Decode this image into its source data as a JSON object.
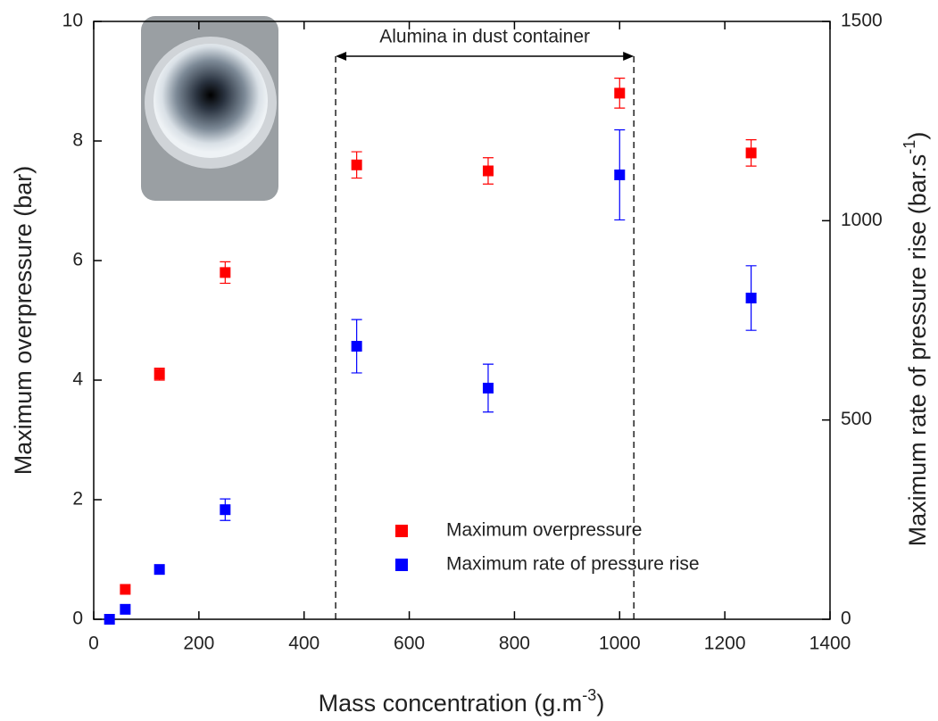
{
  "chart_data": {
    "type": "scatter",
    "x_label": {
      "text": "Mass concentration (g.m",
      "sup": "-3",
      "end": ")"
    },
    "y_label": "Maximum overpressure (bar)",
    "y2_label": {
      "text": "Maximum rate of pressure rise (bar.s",
      "sup": "-1",
      "end": ")"
    },
    "xlim": [
      0,
      1400
    ],
    "xticks": [
      0,
      200,
      400,
      600,
      800,
      1000,
      1200,
      1400
    ],
    "ylim": [
      0,
      10
    ],
    "yticks": [
      0,
      2,
      4,
      6,
      8,
      10
    ],
    "y2lim": [
      0,
      1500
    ],
    "y2ticks": [
      0,
      500,
      1000,
      1500
    ],
    "legend": "bottom-center",
    "series": [
      {
        "name": "Maximum overpressure",
        "color": "#ff0000",
        "x": [
          60,
          125,
          250,
          500,
          750,
          1000,
          1250
        ],
        "values": [
          0.5,
          4.1,
          5.8,
          7.6,
          7.5,
          8.8,
          7.8
        ],
        "errors": [
          0,
          0.1,
          0.18,
          0.22,
          0.22,
          0.25,
          0.22
        ]
      },
      {
        "name": "Maximum rate of pressure rise",
        "color": "#0000ff",
        "axis": "y2",
        "x": [
          30,
          60,
          125,
          250,
          500,
          750,
          1000,
          1250
        ],
        "values": [
          0,
          25,
          125,
          275,
          685,
          580,
          1115,
          806
        ],
        "errors": [
          0,
          0,
          0,
          27,
          67,
          60,
          113,
          81
        ]
      }
    ],
    "annotation": {
      "text": "Alumina in dust container",
      "x_range": [
        460,
        1027
      ]
    }
  }
}
